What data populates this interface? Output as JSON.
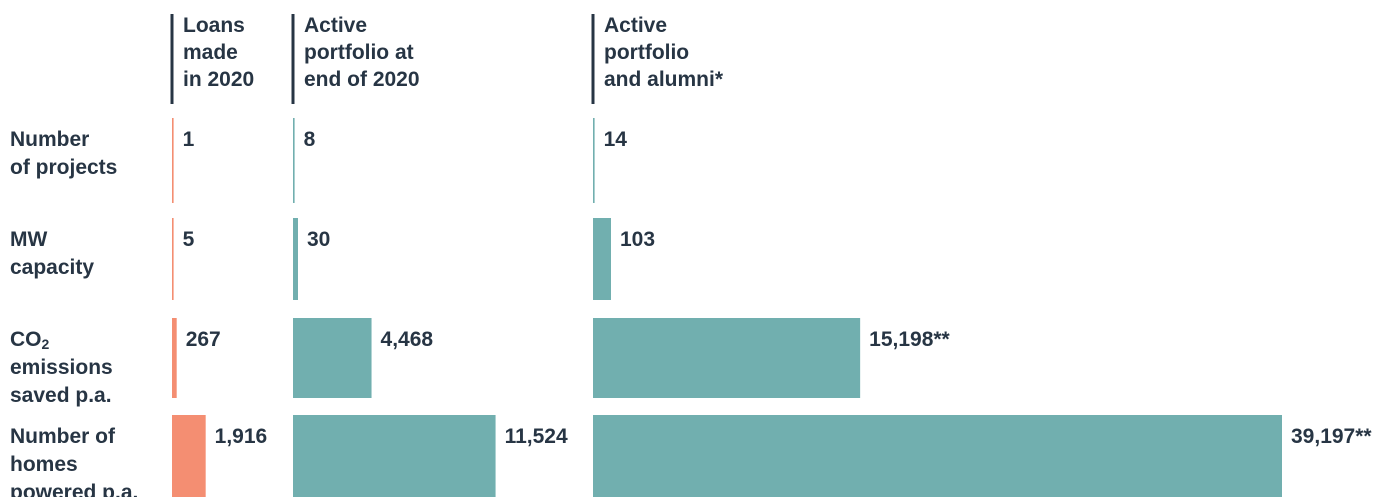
{
  "chart_data": {
    "type": "bar",
    "orientation": "horizontal",
    "series": [
      {
        "name": "Loans made in 2020",
        "header_lines": [
          "Loans",
          "made",
          "in 2020"
        ],
        "values": [
          1,
          5,
          267,
          1916
        ],
        "labels": [
          "1",
          "5",
          "267",
          "1,916"
        ],
        "color": "#F48E72"
      },
      {
        "name": "Active portfolio at end of 2020",
        "header_lines": [
          "Active",
          "portfolio at",
          "end of 2020"
        ],
        "values": [
          8,
          30,
          4468,
          11524
        ],
        "labels": [
          "8",
          "30",
          "4,468",
          "11,524"
        ],
        "color": "#71AFAF"
      },
      {
        "name": "Active portfolio and alumni*",
        "header_lines": [
          "Active",
          "portfolio",
          "and alumni*"
        ],
        "values": [
          14,
          103,
          15198,
          39197
        ],
        "labels": [
          "14",
          "103",
          "15,198**",
          "39,197**"
        ],
        "color": "#71AFAF"
      }
    ],
    "categories": [
      {
        "name": "Number of projects",
        "lines": [
          "Number",
          "of projects"
        ]
      },
      {
        "name": "MW capacity",
        "lines": [
          "MW",
          "capacity"
        ]
      },
      {
        "name": "CO2 emissions saved p.a.",
        "lines": [
          "CO",
          "emissions",
          "saved p.a."
        ],
        "subscript": "2"
      },
      {
        "name": "Number of homes powered p.a.",
        "lines": [
          "Number of",
          "homes",
          "powered p.a."
        ]
      }
    ],
    "text_color": "#273544",
    "divider_color": "#273544"
  }
}
